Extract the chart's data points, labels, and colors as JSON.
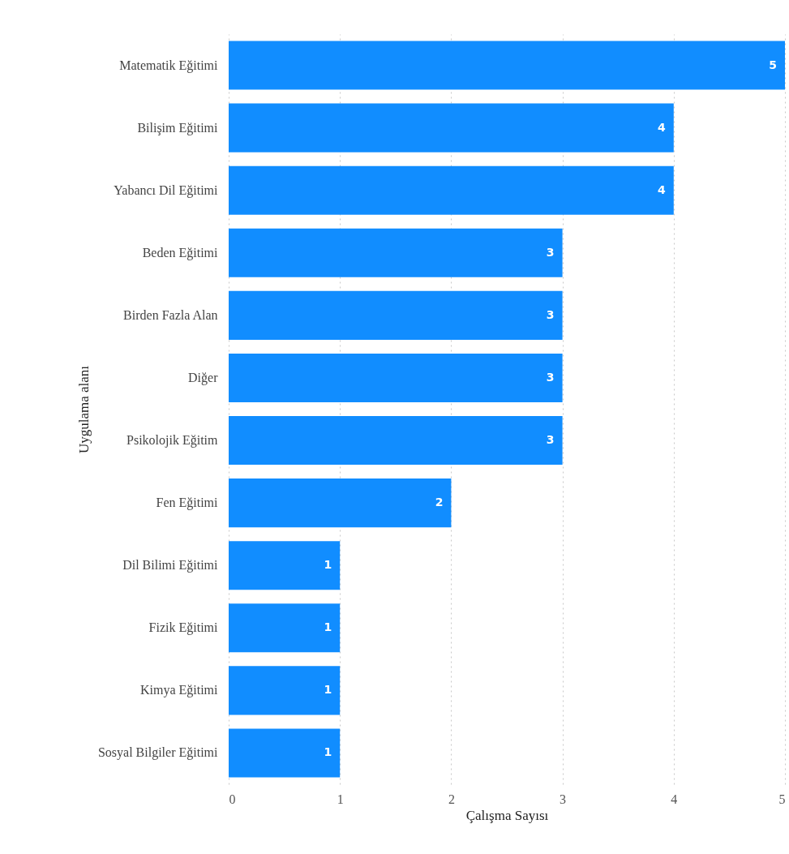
{
  "chart_data": {
    "type": "bar",
    "orientation": "horizontal",
    "xlabel": "Çalışma Sayısı",
    "ylabel": "Uygulama alanı",
    "categories": [
      "Matematik Eğitimi",
      "Bilişim Eğitimi",
      "Yabancı Dil Eğitimi",
      "Beden Eğitimi",
      "Birden Fazla Alan",
      "Diğer",
      "Psikolojik Eğitim",
      "Fen Eğitimi",
      "Dil Bilimi Eğitimi",
      "Fizik Eğitimi",
      "Kimya Eğitimi",
      "Sosyal Bilgiler Eğitimi"
    ],
    "values": [
      5,
      4,
      4,
      3,
      3,
      3,
      3,
      2,
      1,
      1,
      1,
      1
    ],
    "color": "#118dff",
    "xlim": [
      0,
      5
    ],
    "xticks": [
      0,
      1,
      2,
      3,
      4,
      5
    ],
    "grid": "x",
    "data_labels": true
  }
}
